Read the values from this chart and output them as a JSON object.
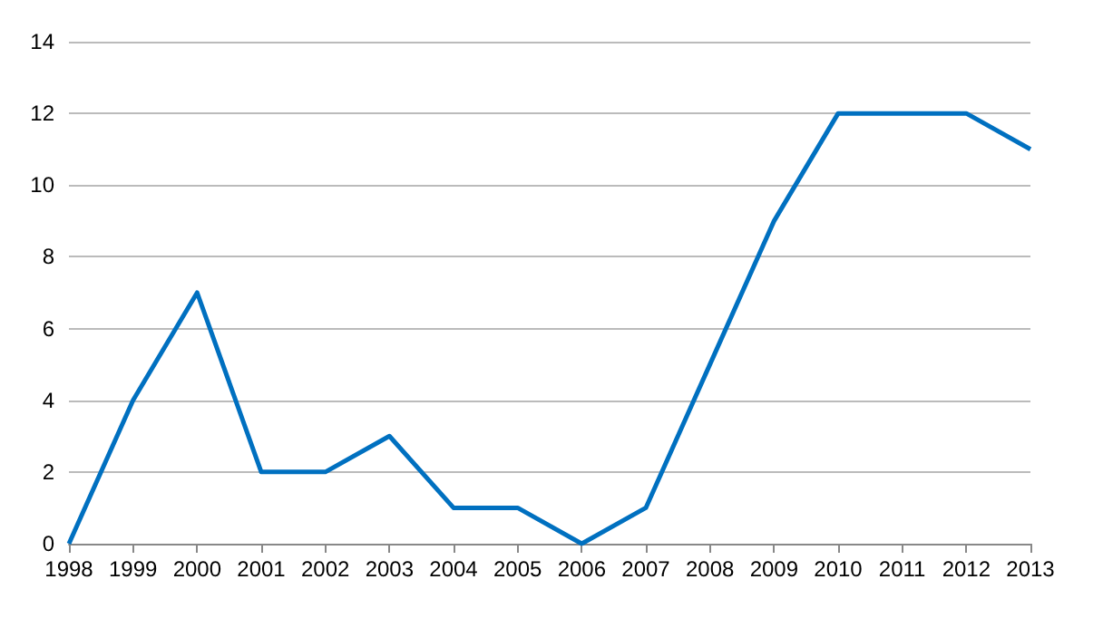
{
  "chart_data": {
    "type": "line",
    "categories": [
      "1998",
      "1999",
      "2000",
      "2001",
      "2002",
      "2003",
      "2004",
      "2005",
      "2006",
      "2007",
      "2008",
      "2009",
      "2010",
      "2011",
      "2012",
      "2013"
    ],
    "series": [
      {
        "color": "#0070c0",
        "values": [
          0,
          4,
          7,
          2,
          2,
          3,
          1,
          1,
          0,
          1,
          5,
          9,
          12,
          12,
          12,
          11
        ]
      }
    ],
    "ylim": [
      0,
      14
    ],
    "yticks": [
      0,
      2,
      4,
      6,
      8,
      10,
      12,
      14
    ],
    "grid": "y",
    "marker": "none",
    "line_style": "solid"
  }
}
